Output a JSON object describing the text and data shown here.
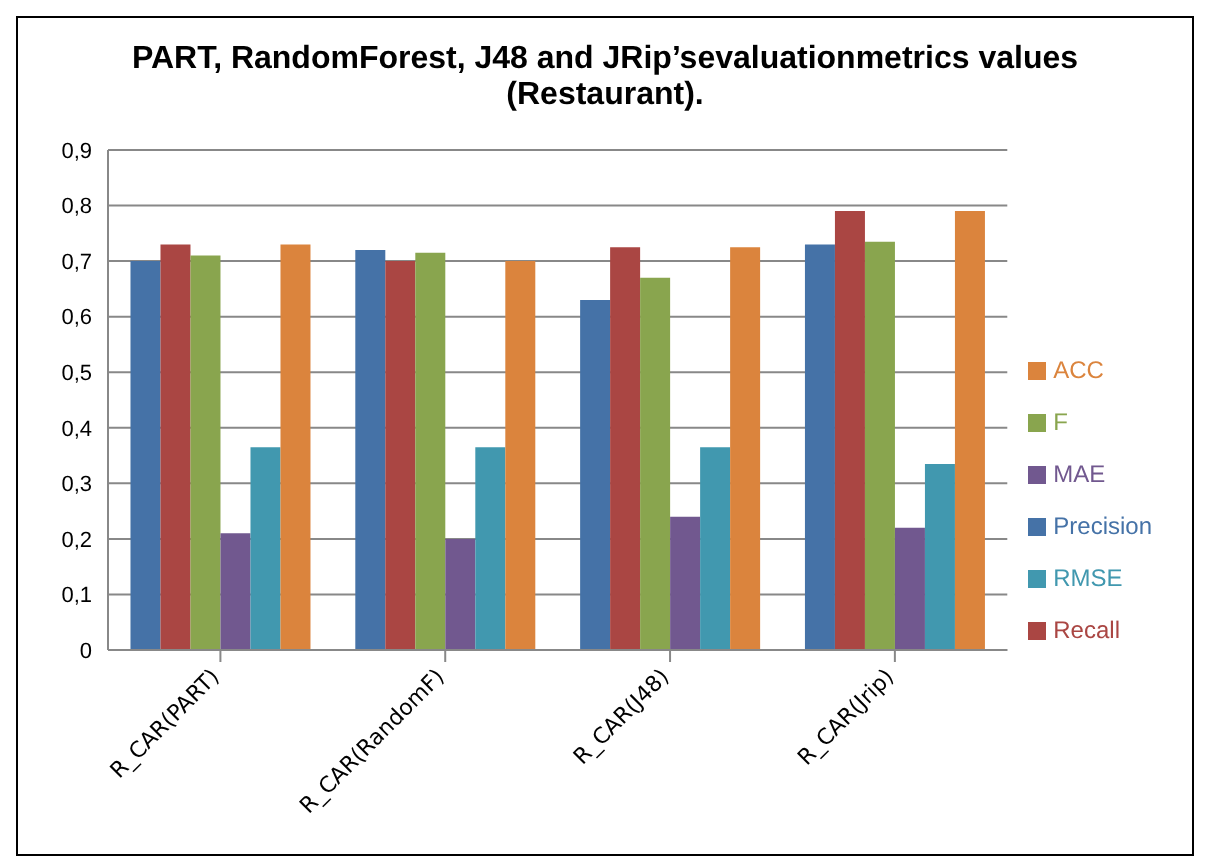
{
  "chart_data": {
    "type": "bar",
    "title": "PART, RandomForest, J48 and JRip’sevaluationmetrics values (Restaurant).",
    "categories": [
      "R_CAR(PART)",
      "R_CAR(RandomF)",
      "R_CAR(J48)",
      "R_CAR(Jrip)"
    ],
    "series": [
      {
        "name": "Precision",
        "color": "#4572a7",
        "values": [
          0.7,
          0.72,
          0.63,
          0.73
        ]
      },
      {
        "name": "Recall",
        "color": "#aa4643",
        "values": [
          0.73,
          0.7,
          0.725,
          0.79
        ]
      },
      {
        "name": "F",
        "color": "#89a54e",
        "values": [
          0.71,
          0.715,
          0.67,
          0.735
        ]
      },
      {
        "name": "MAE",
        "color": "#71588f",
        "values": [
          0.21,
          0.2,
          0.24,
          0.22
        ]
      },
      {
        "name": "RMSE",
        "color": "#4198af",
        "values": [
          0.365,
          0.365,
          0.365,
          0.335
        ]
      },
      {
        "name": "ACC",
        "color": "#db843d",
        "values": [
          0.73,
          0.7,
          0.725,
          0.79
        ]
      }
    ],
    "ylim": [
      0,
      0.9
    ],
    "yticks": [
      {
        "value": 0,
        "label": "0"
      },
      {
        "value": 0.1,
        "label": "0,1"
      },
      {
        "value": 0.2,
        "label": "0,2"
      },
      {
        "value": 0.3,
        "label": "0,3"
      },
      {
        "value": 0.4,
        "label": "0,4"
      },
      {
        "value": 0.5,
        "label": "0,5"
      },
      {
        "value": 0.6,
        "label": "0,6"
      },
      {
        "value": 0.7,
        "label": "0,7"
      },
      {
        "value": 0.8,
        "label": "0,8"
      },
      {
        "value": 0.9,
        "label": "0,9"
      }
    ],
    "grid": "y",
    "legend": "right"
  }
}
